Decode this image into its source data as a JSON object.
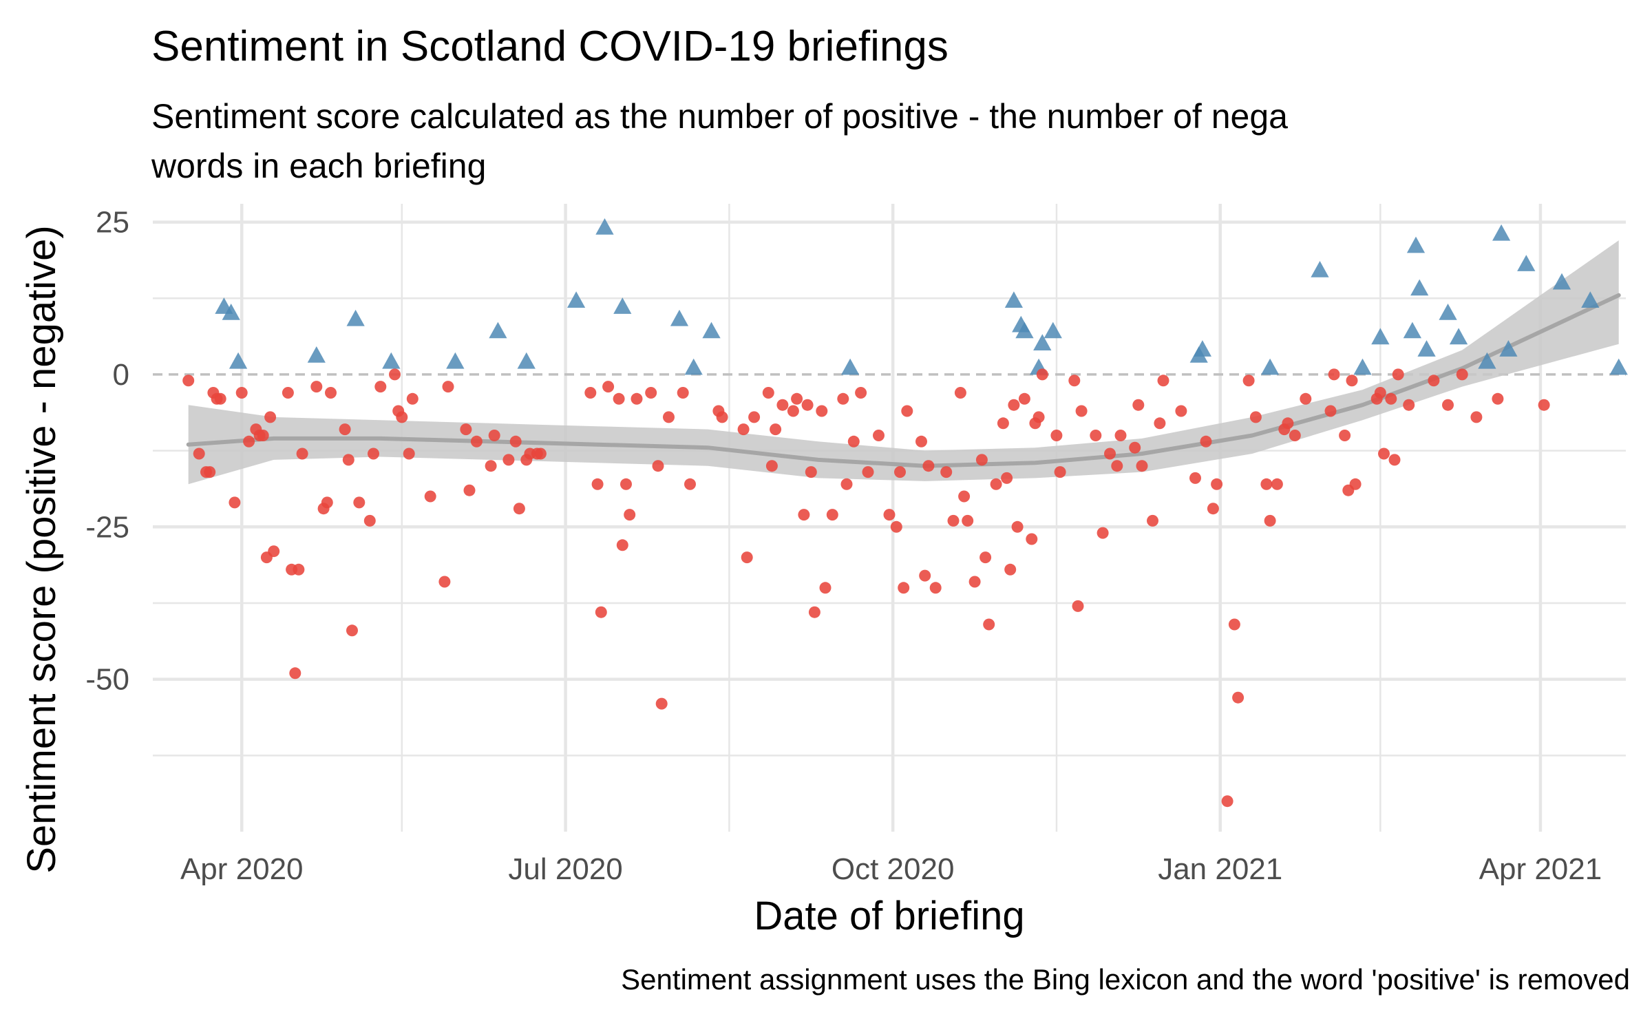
{
  "chart_data": {
    "type": "scatter",
    "title": "Sentiment in Scotland COVID-19 briefings",
    "subtitle_lines": [
      "Sentiment score calculated as the number of positive - the number of nega",
      "words in each briefing"
    ],
    "xlabel": "Date of briefing",
    "ylabel": "Sentiment score (positive - negative)",
    "caption": "Sentiment assignment uses the Bing lexicon and the word 'positive' is removed",
    "x_type": "date",
    "xlim": [
      "2020-03-07",
      "2021-04-25"
    ],
    "ylim": [
      -75,
      28
    ],
    "x_ticks": [
      {
        "value": "2020-04-01",
        "label": "Apr 2020"
      },
      {
        "value": "2020-07-01",
        "label": "Jul 2020"
      },
      {
        "value": "2020-10-01",
        "label": "Oct 2020"
      },
      {
        "value": "2021-01-01",
        "label": "Jan 2021"
      },
      {
        "value": "2021-04-01",
        "label": "Apr 2021"
      }
    ],
    "x_minor_ticks": [
      "2020-05-16",
      "2020-08-16",
      "2020-11-16",
      "2021-02-15"
    ],
    "y_ticks": [
      {
        "value": 25,
        "label": "25"
      },
      {
        "value": 0,
        "label": "0"
      },
      {
        "value": -25,
        "label": "-25"
      },
      {
        "value": -50,
        "label": "-50"
      }
    ],
    "y_minor_ticks": [
      12.5,
      -12.5,
      -37.5,
      -62.5
    ],
    "reference_line": 0,
    "grid": true,
    "legend": "none",
    "colors": {
      "positive": "#4f8ab5",
      "negative": "#e8453c",
      "smooth_line": "#a6a6a6",
      "ribbon": "#c8c8c8",
      "grid": "#e6e6e6",
      "zero_line": "#c0c0c0"
    },
    "series": [
      {
        "marker": "triangle",
        "color": "#4f8ab5",
        "points": [
          [
            "2020-03-27",
            11
          ],
          [
            "2020-03-29",
            10
          ],
          [
            "2020-03-31",
            2
          ],
          [
            "2020-04-22",
            3
          ],
          [
            "2020-05-03",
            9
          ],
          [
            "2020-05-13",
            2
          ],
          [
            "2020-05-31",
            2
          ],
          [
            "2020-06-12",
            7
          ],
          [
            "2020-06-20",
            2
          ],
          [
            "2020-07-04",
            12
          ],
          [
            "2020-07-12",
            24
          ],
          [
            "2020-07-17",
            11
          ],
          [
            "2020-08-02",
            9
          ],
          [
            "2020-08-06",
            1
          ],
          [
            "2020-08-11",
            7
          ],
          [
            "2020-09-19",
            1
          ],
          [
            "2020-11-04",
            12
          ],
          [
            "2020-11-06",
            8
          ],
          [
            "2020-11-07",
            7
          ],
          [
            "2020-11-11",
            1
          ],
          [
            "2020-11-12",
            5
          ],
          [
            "2020-11-15",
            7
          ],
          [
            "2020-12-26",
            3
          ],
          [
            "2020-12-27",
            4
          ],
          [
            "2021-01-15",
            1
          ],
          [
            "2021-01-29",
            17
          ],
          [
            "2021-02-10",
            1
          ],
          [
            "2021-02-15",
            6
          ],
          [
            "2021-02-24",
            7
          ],
          [
            "2021-02-25",
            21
          ],
          [
            "2021-02-26",
            14
          ],
          [
            "2021-02-28",
            4
          ],
          [
            "2021-03-06",
            10
          ],
          [
            "2021-03-09",
            6
          ],
          [
            "2021-03-17",
            2
          ],
          [
            "2021-03-21",
            23
          ],
          [
            "2021-03-23",
            4
          ],
          [
            "2021-03-28",
            18
          ],
          [
            "2021-04-07",
            15
          ],
          [
            "2021-04-15",
            12
          ],
          [
            "2021-04-23",
            1
          ]
        ]
      },
      {
        "marker": "circle",
        "color": "#e8453c",
        "points": [
          [
            "2020-03-17",
            -1
          ],
          [
            "2020-03-20",
            -13
          ],
          [
            "2020-03-22",
            -16
          ],
          [
            "2020-03-23",
            -16
          ],
          [
            "2020-03-24",
            -3
          ],
          [
            "2020-03-25",
            -4
          ],
          [
            "2020-03-26",
            -4
          ],
          [
            "2020-03-30",
            -21
          ],
          [
            "2020-04-01",
            -3
          ],
          [
            "2020-04-03",
            -11
          ],
          [
            "2020-04-05",
            -9
          ],
          [
            "2020-04-06",
            -10
          ],
          [
            "2020-04-07",
            -10
          ],
          [
            "2020-04-08",
            -30
          ],
          [
            "2020-04-09",
            -7
          ],
          [
            "2020-04-10",
            -29
          ],
          [
            "2020-04-14",
            -3
          ],
          [
            "2020-04-15",
            -32
          ],
          [
            "2020-04-16",
            -49
          ],
          [
            "2020-04-17",
            -32
          ],
          [
            "2020-04-18",
            -13
          ],
          [
            "2020-04-22",
            -2
          ],
          [
            "2020-04-24",
            -22
          ],
          [
            "2020-04-25",
            -21
          ],
          [
            "2020-04-26",
            -3
          ],
          [
            "2020-04-30",
            -9
          ],
          [
            "2020-05-01",
            -14
          ],
          [
            "2020-05-02",
            -42
          ],
          [
            "2020-05-04",
            -21
          ],
          [
            "2020-05-07",
            -24
          ],
          [
            "2020-05-08",
            -13
          ],
          [
            "2020-05-10",
            -2
          ],
          [
            "2020-05-14",
            0
          ],
          [
            "2020-05-15",
            -6
          ],
          [
            "2020-05-16",
            -7
          ],
          [
            "2020-05-18",
            -13
          ],
          [
            "2020-05-19",
            -4
          ],
          [
            "2020-05-24",
            -20
          ],
          [
            "2020-05-28",
            -34
          ],
          [
            "2020-05-29",
            -2
          ],
          [
            "2020-06-03",
            -9
          ],
          [
            "2020-06-04",
            -19
          ],
          [
            "2020-06-06",
            -11
          ],
          [
            "2020-06-10",
            -15
          ],
          [
            "2020-06-11",
            -10
          ],
          [
            "2020-06-15",
            -14
          ],
          [
            "2020-06-17",
            -11
          ],
          [
            "2020-06-18",
            -22
          ],
          [
            "2020-06-20",
            -14
          ],
          [
            "2020-06-21",
            -13
          ],
          [
            "2020-06-23",
            -13
          ],
          [
            "2020-06-24",
            -13
          ],
          [
            "2020-07-08",
            -3
          ],
          [
            "2020-07-10",
            -18
          ],
          [
            "2020-07-11",
            -39
          ],
          [
            "2020-07-13",
            -2
          ],
          [
            "2020-07-16",
            -4
          ],
          [
            "2020-07-17",
            -28
          ],
          [
            "2020-07-18",
            -18
          ],
          [
            "2020-07-19",
            -23
          ],
          [
            "2020-07-21",
            -4
          ],
          [
            "2020-07-25",
            -3
          ],
          [
            "2020-07-27",
            -15
          ],
          [
            "2020-07-28",
            -54
          ],
          [
            "2020-07-30",
            -7
          ],
          [
            "2020-08-03",
            -3
          ],
          [
            "2020-08-05",
            -18
          ],
          [
            "2020-08-13",
            -6
          ],
          [
            "2020-08-14",
            -7
          ],
          [
            "2020-08-20",
            -9
          ],
          [
            "2020-08-21",
            -30
          ],
          [
            "2020-08-23",
            -7
          ],
          [
            "2020-08-27",
            -3
          ],
          [
            "2020-08-28",
            -15
          ],
          [
            "2020-08-29",
            -9
          ],
          [
            "2020-08-31",
            -5
          ],
          [
            "2020-09-03",
            -6
          ],
          [
            "2020-09-04",
            -4
          ],
          [
            "2020-09-06",
            -23
          ],
          [
            "2020-09-07",
            -5
          ],
          [
            "2020-09-08",
            -16
          ],
          [
            "2020-09-09",
            -39
          ],
          [
            "2020-09-11",
            -6
          ],
          [
            "2020-09-12",
            -35
          ],
          [
            "2020-09-14",
            -23
          ],
          [
            "2020-09-17",
            -4
          ],
          [
            "2020-09-18",
            -18
          ],
          [
            "2020-09-20",
            -11
          ],
          [
            "2020-09-22",
            -3
          ],
          [
            "2020-09-24",
            -16
          ],
          [
            "2020-09-27",
            -10
          ],
          [
            "2020-09-30",
            -23
          ],
          [
            "2020-10-02",
            -25
          ],
          [
            "2020-10-03",
            -16
          ],
          [
            "2020-10-04",
            -35
          ],
          [
            "2020-10-05",
            -6
          ],
          [
            "2020-10-09",
            -11
          ],
          [
            "2020-10-10",
            -33
          ],
          [
            "2020-10-11",
            -15
          ],
          [
            "2020-10-13",
            -35
          ],
          [
            "2020-10-16",
            -16
          ],
          [
            "2020-10-18",
            -24
          ],
          [
            "2020-10-20",
            -3
          ],
          [
            "2020-10-21",
            -20
          ],
          [
            "2020-10-22",
            -24
          ],
          [
            "2020-10-24",
            -34
          ],
          [
            "2020-10-26",
            -14
          ],
          [
            "2020-10-27",
            -30
          ],
          [
            "2020-10-28",
            -41
          ],
          [
            "2020-10-30",
            -18
          ],
          [
            "2020-11-01",
            -8
          ],
          [
            "2020-11-02",
            -17
          ],
          [
            "2020-11-03",
            -32
          ],
          [
            "2020-11-04",
            -5
          ],
          [
            "2020-11-05",
            -25
          ],
          [
            "2020-11-07",
            -4
          ],
          [
            "2020-11-09",
            -27
          ],
          [
            "2020-11-10",
            -8
          ],
          [
            "2020-11-11",
            -7
          ],
          [
            "2020-11-12",
            0
          ],
          [
            "2020-11-16",
            -10
          ],
          [
            "2020-11-17",
            -16
          ],
          [
            "2020-11-21",
            -1
          ],
          [
            "2020-11-22",
            -38
          ],
          [
            "2020-11-23",
            -6
          ],
          [
            "2020-11-27",
            -10
          ],
          [
            "2020-11-29",
            -26
          ],
          [
            "2020-12-01",
            -13
          ],
          [
            "2020-12-03",
            -15
          ],
          [
            "2020-12-04",
            -10
          ],
          [
            "2020-12-08",
            -12
          ],
          [
            "2020-12-09",
            -5
          ],
          [
            "2020-12-10",
            -15
          ],
          [
            "2020-12-13",
            -24
          ],
          [
            "2020-12-15",
            -8
          ],
          [
            "2020-12-16",
            -1
          ],
          [
            "2020-12-21",
            -6
          ],
          [
            "2020-12-25",
            -17
          ],
          [
            "2020-12-28",
            -11
          ],
          [
            "2020-12-30",
            -22
          ],
          [
            "2020-12-31",
            -18
          ],
          [
            "2021-01-03",
            -70
          ],
          [
            "2021-01-05",
            -41
          ],
          [
            "2021-01-06",
            -53
          ],
          [
            "2021-01-09",
            -1
          ],
          [
            "2021-01-11",
            -7
          ],
          [
            "2021-01-14",
            -18
          ],
          [
            "2021-01-15",
            -24
          ],
          [
            "2021-01-17",
            -18
          ],
          [
            "2021-01-19",
            -9
          ],
          [
            "2021-01-20",
            -8
          ],
          [
            "2021-01-22",
            -10
          ],
          [
            "2021-01-25",
            -4
          ],
          [
            "2021-02-01",
            -6
          ],
          [
            "2021-02-02",
            0
          ],
          [
            "2021-02-05",
            -10
          ],
          [
            "2021-02-06",
            -19
          ],
          [
            "2021-02-07",
            -1
          ],
          [
            "2021-02-08",
            -18
          ],
          [
            "2021-02-14",
            -4
          ],
          [
            "2021-02-15",
            -3
          ],
          [
            "2021-02-16",
            -13
          ],
          [
            "2021-02-18",
            -4
          ],
          [
            "2021-02-19",
            -14
          ],
          [
            "2021-02-20",
            0
          ],
          [
            "2021-02-23",
            -5
          ],
          [
            "2021-03-02",
            -1
          ],
          [
            "2021-03-06",
            -5
          ],
          [
            "2021-03-10",
            0
          ],
          [
            "2021-03-14",
            -7
          ],
          [
            "2021-03-20",
            -4
          ],
          [
            "2021-04-02",
            -5
          ]
        ]
      }
    ],
    "smooth": {
      "x": [
        "2020-03-17",
        "2020-04-10",
        "2020-05-10",
        "2020-06-10",
        "2020-07-10",
        "2020-08-10",
        "2020-09-10",
        "2020-10-10",
        "2020-11-10",
        "2020-12-10",
        "2021-01-10",
        "2021-02-10",
        "2021-03-10",
        "2021-04-23"
      ],
      "y": [
        -11.5,
        -10.5,
        -10.5,
        -11,
        -11.5,
        -12,
        -14,
        -15,
        -14.5,
        -13,
        -10,
        -5,
        1,
        13
      ],
      "lower": [
        -18,
        -14,
        -13.5,
        -14,
        -14.5,
        -15,
        -17,
        -17.5,
        -17,
        -16,
        -13,
        -7.5,
        -2,
        5
      ],
      "upper": [
        -5,
        -7,
        -7.5,
        -8,
        -8.5,
        -9,
        -11,
        -12.5,
        -12,
        -10.5,
        -7,
        -2.5,
        4,
        22
      ]
    }
  }
}
